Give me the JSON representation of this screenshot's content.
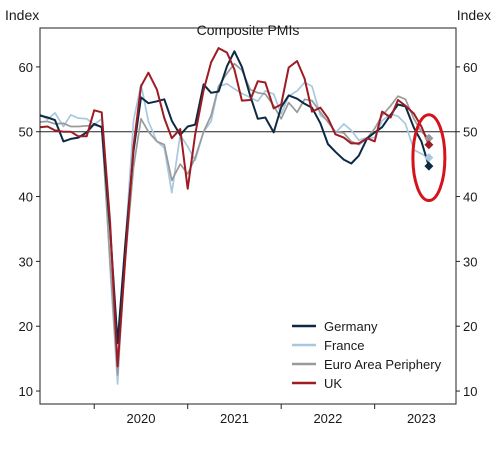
{
  "chart_data": {
    "type": "line",
    "title": "Composite PMIs",
    "ylabel_left": "Index",
    "ylabel_right": "Index",
    "ylim": [
      8,
      66
    ],
    "yticks": [
      10,
      20,
      30,
      40,
      50,
      60
    ],
    "xlim": [
      2019.42,
      2023.87
    ],
    "xticks": [
      "2020",
      "2021",
      "2022",
      "2023"
    ],
    "reference_line": 50,
    "grid": false,
    "legend_position": "bottom-right",
    "series": [
      {
        "name": "Germany",
        "color": "#0d2a44",
        "points": [
          [
            2019.42,
            52.5
          ],
          [
            2019.5,
            52.2
          ],
          [
            2019.58,
            51.8
          ],
          [
            2019.67,
            48.5
          ],
          [
            2019.75,
            48.9
          ],
          [
            2019.83,
            49.1
          ],
          [
            2019.92,
            49.9
          ],
          [
            2020.0,
            51.2
          ],
          [
            2020.08,
            50.7
          ],
          [
            2020.17,
            35.0
          ],
          [
            2020.25,
            17.4
          ],
          [
            2020.33,
            32.3
          ],
          [
            2020.42,
            47.0
          ],
          [
            2020.5,
            55.3
          ],
          [
            2020.58,
            54.4
          ],
          [
            2020.67,
            54.7
          ],
          [
            2020.75,
            55.0
          ],
          [
            2020.83,
            51.7
          ],
          [
            2020.92,
            49.5
          ],
          [
            2021.0,
            50.8
          ],
          [
            2021.08,
            51.1
          ],
          [
            2021.17,
            57.3
          ],
          [
            2021.25,
            56.0
          ],
          [
            2021.33,
            56.2
          ],
          [
            2021.42,
            60.1
          ],
          [
            2021.5,
            62.4
          ],
          [
            2021.58,
            60.0
          ],
          [
            2021.67,
            55.5
          ],
          [
            2021.75,
            52.0
          ],
          [
            2021.83,
            52.2
          ],
          [
            2021.92,
            49.9
          ],
          [
            2022.0,
            53.8
          ],
          [
            2022.08,
            55.6
          ],
          [
            2022.17,
            55.1
          ],
          [
            2022.25,
            54.3
          ],
          [
            2022.33,
            53.7
          ],
          [
            2022.42,
            51.3
          ],
          [
            2022.5,
            48.1
          ],
          [
            2022.58,
            46.9
          ],
          [
            2022.67,
            45.7
          ],
          [
            2022.75,
            45.1
          ],
          [
            2022.83,
            46.3
          ],
          [
            2022.92,
            49.0
          ],
          [
            2023.0,
            49.9
          ],
          [
            2023.08,
            50.7
          ],
          [
            2023.17,
            52.6
          ],
          [
            2023.25,
            54.2
          ],
          [
            2023.33,
            53.9
          ],
          [
            2023.42,
            50.6
          ],
          [
            2023.5,
            48.5
          ],
          [
            2023.58,
            44.7
          ]
        ]
      },
      {
        "name": "France",
        "color": "#a8c8e0",
        "points": [
          [
            2019.42,
            52.7
          ],
          [
            2019.5,
            51.9
          ],
          [
            2019.58,
            52.9
          ],
          [
            2019.67,
            50.8
          ],
          [
            2019.75,
            52.6
          ],
          [
            2019.83,
            52.1
          ],
          [
            2019.92,
            52.0
          ],
          [
            2020.0,
            51.1
          ],
          [
            2020.08,
            52.0
          ],
          [
            2020.17,
            28.9
          ],
          [
            2020.25,
            11.1
          ],
          [
            2020.33,
            32.1
          ],
          [
            2020.42,
            51.7
          ],
          [
            2020.5,
            57.3
          ],
          [
            2020.58,
            51.6
          ],
          [
            2020.67,
            48.5
          ],
          [
            2020.75,
            47.5
          ],
          [
            2020.83,
            40.6
          ],
          [
            2020.92,
            49.5
          ],
          [
            2021.0,
            47.7
          ],
          [
            2021.08,
            45.6
          ],
          [
            2021.17,
            50.0
          ],
          [
            2021.25,
            51.6
          ],
          [
            2021.33,
            57.0
          ],
          [
            2021.42,
            57.4
          ],
          [
            2021.5,
            56.6
          ],
          [
            2021.58,
            55.9
          ],
          [
            2021.67,
            55.3
          ],
          [
            2021.75,
            54.7
          ],
          [
            2021.83,
            56.3
          ],
          [
            2021.92,
            55.8
          ],
          [
            2022.0,
            52.7
          ],
          [
            2022.08,
            55.5
          ],
          [
            2022.17,
            56.3
          ],
          [
            2022.25,
            57.6
          ],
          [
            2022.33,
            57.0
          ],
          [
            2022.42,
            52.5
          ],
          [
            2022.5,
            51.7
          ],
          [
            2022.58,
            49.8
          ],
          [
            2022.67,
            51.2
          ],
          [
            2022.75,
            50.2
          ],
          [
            2022.83,
            48.7
          ],
          [
            2022.92,
            49.1
          ],
          [
            2023.0,
            49.1
          ],
          [
            2023.08,
            51.7
          ],
          [
            2023.17,
            52.7
          ],
          [
            2023.25,
            52.4
          ],
          [
            2023.33,
            51.2
          ],
          [
            2023.42,
            47.2
          ],
          [
            2023.5,
            46.6
          ],
          [
            2023.58,
            46.0
          ]
        ]
      },
      {
        "name": "Euro Area Periphery",
        "color": "#9a9a9a",
        "points": [
          [
            2019.42,
            51.5
          ],
          [
            2019.5,
            51.6
          ],
          [
            2019.58,
            51.2
          ],
          [
            2019.67,
            51.3
          ],
          [
            2019.75,
            50.8
          ],
          [
            2019.83,
            50.8
          ],
          [
            2019.92,
            50.9
          ],
          [
            2020.0,
            51.0
          ],
          [
            2020.08,
            50.8
          ],
          [
            2020.17,
            30.0
          ],
          [
            2020.25,
            12.5
          ],
          [
            2020.33,
            30.0
          ],
          [
            2020.42,
            44.5
          ],
          [
            2020.5,
            52.0
          ],
          [
            2020.58,
            50.0
          ],
          [
            2020.67,
            48.5
          ],
          [
            2020.75,
            48.0
          ],
          [
            2020.83,
            42.5
          ],
          [
            2020.92,
            45.0
          ],
          [
            2021.0,
            43.5
          ],
          [
            2021.08,
            46.0
          ],
          [
            2021.17,
            50.0
          ],
          [
            2021.25,
            52.5
          ],
          [
            2021.33,
            57.0
          ],
          [
            2021.42,
            59.0
          ],
          [
            2021.5,
            60.5
          ],
          [
            2021.58,
            59.5
          ],
          [
            2021.67,
            56.5
          ],
          [
            2021.75,
            56.0
          ],
          [
            2021.83,
            55.8
          ],
          [
            2021.92,
            54.0
          ],
          [
            2022.0,
            52.0
          ],
          [
            2022.08,
            54.5
          ],
          [
            2022.17,
            53.0
          ],
          [
            2022.25,
            55.0
          ],
          [
            2022.33,
            54.8
          ],
          [
            2022.42,
            53.0
          ],
          [
            2022.5,
            51.5
          ],
          [
            2022.58,
            50.0
          ],
          [
            2022.67,
            49.8
          ],
          [
            2022.75,
            48.5
          ],
          [
            2022.83,
            48.0
          ],
          [
            2022.92,
            49.0
          ],
          [
            2023.0,
            50.5
          ],
          [
            2023.08,
            52.5
          ],
          [
            2023.17,
            54.0
          ],
          [
            2023.25,
            55.5
          ],
          [
            2023.33,
            55.0
          ],
          [
            2023.42,
            52.0
          ],
          [
            2023.5,
            50.0
          ],
          [
            2023.58,
            49.0
          ]
        ]
      },
      {
        "name": "UK",
        "color": "#9e1b23",
        "points": [
          [
            2019.42,
            50.7
          ],
          [
            2019.5,
            50.8
          ],
          [
            2019.58,
            50.2
          ],
          [
            2019.67,
            50.0
          ],
          [
            2019.75,
            50.0
          ],
          [
            2019.83,
            49.3
          ],
          [
            2019.92,
            49.3
          ],
          [
            2020.0,
            53.3
          ],
          [
            2020.08,
            53.0
          ],
          [
            2020.17,
            36.0
          ],
          [
            2020.25,
            13.8
          ],
          [
            2020.33,
            30.0
          ],
          [
            2020.42,
            47.7
          ],
          [
            2020.5,
            57.0
          ],
          [
            2020.58,
            59.1
          ],
          [
            2020.67,
            56.5
          ],
          [
            2020.75,
            52.1
          ],
          [
            2020.83,
            49.0
          ],
          [
            2020.92,
            50.4
          ],
          [
            2021.0,
            41.2
          ],
          [
            2021.08,
            49.6
          ],
          [
            2021.17,
            56.4
          ],
          [
            2021.25,
            60.7
          ],
          [
            2021.33,
            62.9
          ],
          [
            2021.42,
            62.2
          ],
          [
            2021.5,
            59.6
          ],
          [
            2021.58,
            54.8
          ],
          [
            2021.67,
            54.9
          ],
          [
            2021.75,
            57.8
          ],
          [
            2021.83,
            57.6
          ],
          [
            2021.92,
            53.6
          ],
          [
            2022.0,
            54.2
          ],
          [
            2022.08,
            59.9
          ],
          [
            2022.17,
            60.9
          ],
          [
            2022.25,
            58.2
          ],
          [
            2022.33,
            53.1
          ],
          [
            2022.42,
            53.7
          ],
          [
            2022.5,
            52.1
          ],
          [
            2022.58,
            49.6
          ],
          [
            2022.67,
            49.1
          ],
          [
            2022.75,
            48.2
          ],
          [
            2022.83,
            48.2
          ],
          [
            2022.92,
            49.0
          ],
          [
            2023.0,
            48.5
          ],
          [
            2023.08,
            53.1
          ],
          [
            2023.17,
            52.2
          ],
          [
            2023.25,
            54.9
          ],
          [
            2023.33,
            54.0
          ],
          [
            2023.42,
            52.8
          ],
          [
            2023.5,
            50.8
          ],
          [
            2023.58,
            48.0
          ]
        ]
      }
    ]
  },
  "colors": {
    "highlight_circle": "#d6131b",
    "axis": "#222222"
  }
}
